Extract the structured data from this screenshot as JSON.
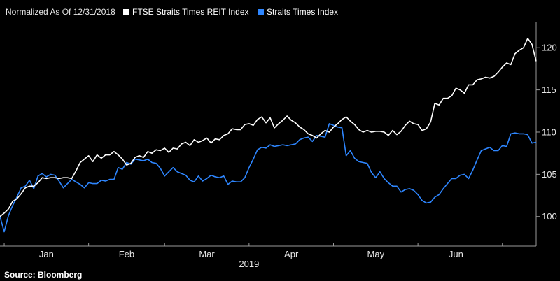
{
  "header": {
    "normalization_note": "Normalized As Of 12/31/2018"
  },
  "footer": {
    "source": "Source: Bloomberg"
  },
  "colors": {
    "background": "#000000",
    "reit_line": "#ffffff",
    "sti_line": "#2e86ff",
    "axis": "#9a9a9a",
    "text": "#e6e6e6"
  },
  "chart_data": {
    "type": "line",
    "title": "",
    "xlabel": "2019",
    "ylabel": "",
    "ylim": [
      96.5,
      123
    ],
    "yticks": [
      100,
      105,
      110,
      115,
      120
    ],
    "y_axis_side": "right",
    "grid": false,
    "legend_position": "top",
    "x_range": [
      0,
      127
    ],
    "x_unit": "trading day index (0 = 12/31/2018)",
    "month_labels": [
      {
        "label": "Jan",
        "x": 11
      },
      {
        "label": "Feb",
        "x": 30
      },
      {
        "label": "Mar",
        "x": 49
      },
      {
        "label": "Apr",
        "x": 69
      },
      {
        "label": "May",
        "x": 89
      },
      {
        "label": "Jun",
        "x": 108
      }
    ],
    "month_boundaries": [
      1,
      21,
      39,
      59,
      79,
      99,
      119
    ],
    "series": [
      {
        "name": "FTSE Straits Times REIT Index",
        "color": "#ffffff",
        "values": [
          100.0,
          100.4,
          100.9,
          101.8,
          102.1,
          102.7,
          103.4,
          103.6,
          103.6,
          104.0,
          104.6,
          104.5,
          104.6,
          104.6,
          104.5,
          104.6,
          104.6,
          104.5,
          105.4,
          106.4,
          106.8,
          107.2,
          106.5,
          107.3,
          106.9,
          107.3,
          107.3,
          107.7,
          107.3,
          106.8,
          106.1,
          106.3,
          107.0,
          107.2,
          107.0,
          107.7,
          107.5,
          107.9,
          107.8,
          108.1,
          107.6,
          108.1,
          108.0,
          108.6,
          108.8,
          108.4,
          109.1,
          108.8,
          109.0,
          109.3,
          108.7,
          109.2,
          109.1,
          109.6,
          109.8,
          110.4,
          110.3,
          110.3,
          110.9,
          111.0,
          110.8,
          111.5,
          111.8,
          111.1,
          111.7,
          110.5,
          111.0,
          111.4,
          111.9,
          111.4,
          111.1,
          110.6,
          110.3,
          109.8,
          109.6,
          109.3,
          109.8,
          110.2,
          110.0,
          110.6,
          111.0,
          111.5,
          111.8,
          111.3,
          110.9,
          110.3,
          110.0,
          110.2,
          110.0,
          110.1,
          110.1,
          110.0,
          109.6,
          110.2,
          109.7,
          110.1,
          110.8,
          111.3,
          111.0,
          110.9,
          110.2,
          110.4,
          111.2,
          113.4,
          113.2,
          114.0,
          114.0,
          114.3,
          115.2,
          115.0,
          114.6,
          115.6,
          115.6,
          116.2,
          116.3,
          116.5,
          116.4,
          116.6,
          117.1,
          117.7,
          118.2,
          118.0,
          119.3,
          119.7,
          120.0,
          121.1,
          120.4,
          118.4
        ]
      },
      {
        "name": "Straits Times Index",
        "color": "#2e86ff",
        "values": [
          100.0,
          98.2,
          100.1,
          101.3,
          102.3,
          103.4,
          103.6,
          104.3,
          103.3,
          104.8,
          105.1,
          104.7,
          105.0,
          104.9,
          104.2,
          103.4,
          103.9,
          104.4,
          104.1,
          103.8,
          103.4,
          104.0,
          103.9,
          103.9,
          104.3,
          104.2,
          104.4,
          104.4,
          105.8,
          105.6,
          106.4,
          106.2,
          106.8,
          106.7,
          106.6,
          106.8,
          106.4,
          106.3,
          105.7,
          104.8,
          105.3,
          105.8,
          105.3,
          105.1,
          104.9,
          104.3,
          104.1,
          104.8,
          104.2,
          104.5,
          104.9,
          104.7,
          104.6,
          104.8,
          103.8,
          104.2,
          104.1,
          104.1,
          104.6,
          105.8,
          106.8,
          107.9,
          108.2,
          108.1,
          108.5,
          108.3,
          108.4,
          108.5,
          108.4,
          108.5,
          108.6,
          109.1,
          109.3,
          109.4,
          108.9,
          109.6,
          109.5,
          109.4,
          111.0,
          110.8,
          110.6,
          110.5,
          107.2,
          107.8,
          106.9,
          106.5,
          106.4,
          106.3,
          105.2,
          104.6,
          105.3,
          104.5,
          104.0,
          103.6,
          103.6,
          102.9,
          103.2,
          103.3,
          103.1,
          102.6,
          101.9,
          101.6,
          101.7,
          102.3,
          102.6,
          103.3,
          103.9,
          104.5,
          104.5,
          104.9,
          105.0,
          104.5,
          105.5,
          106.7,
          107.8,
          108.0,
          108.2,
          107.8,
          107.8,
          108.4,
          108.3,
          109.8,
          109.9,
          109.8,
          109.8,
          109.7,
          108.7,
          108.8
        ]
      }
    ]
  }
}
